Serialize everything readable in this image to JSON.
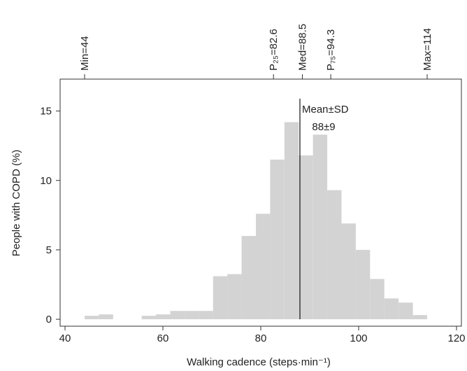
{
  "chart_data": {
    "type": "histogram",
    "x_label": "Walking cadence (steps·min⁻¹)",
    "y_label": "People with COPD (%)",
    "bins": [
      44,
      46.917,
      49.833,
      52.75,
      55.667,
      58.583,
      61.5,
      64.417,
      67.333,
      70.25,
      73.167,
      76.083,
      79,
      81.917,
      84.833,
      87.75,
      90.667,
      93.583,
      96.5,
      99.417,
      102.333,
      105.25,
      108.167,
      111.083,
      114
    ],
    "values": [
      0.25,
      0.35,
      0,
      0,
      0.25,
      0.35,
      0.6,
      0.6,
      0.6,
      3.1,
      3.25,
      6.0,
      7.6,
      11.5,
      14.2,
      11.8,
      13.3,
      9.3,
      6.9,
      5.0,
      2.9,
      1.5,
      1.2,
      0.3
    ],
    "color": "#d3d3d3",
    "xlim": [
      39,
      121
    ],
    "xticks": [
      40,
      60,
      80,
      100,
      120
    ],
    "ylim": [
      -0.5,
      17.3
    ],
    "yticks": [
      0,
      5,
      10,
      15
    ],
    "top_ticks": [
      {
        "value": 44,
        "label": "Min=44"
      },
      {
        "value": 82.6,
        "label": "P₂₅=82.6"
      },
      {
        "value": 88.5,
        "label": "Med=88.5"
      },
      {
        "value": 94.3,
        "label": "P₇₅=94.3"
      },
      {
        "value": 114,
        "label": "Max=114"
      }
    ],
    "mean_line": {
      "value": 88,
      "label": "Mean±SD",
      "sublabel": "88±9"
    }
  }
}
